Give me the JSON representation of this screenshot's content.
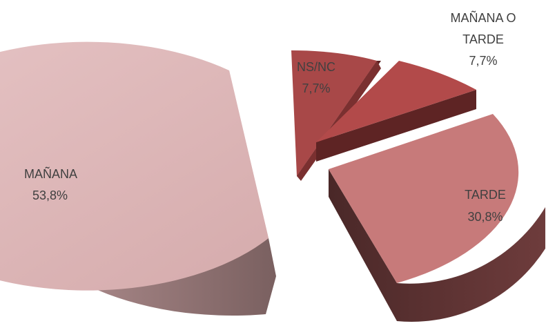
{
  "chart_data": {
    "type": "pie",
    "style": "3d-exploded",
    "legend": "none",
    "title": "",
    "slices": [
      {
        "label_lines": [
          "MAÑANA"
        ],
        "value_label": "53,8%",
        "value": 53.8,
        "top_color": "#DDB5B6",
        "side_color": "#8A6A6B"
      },
      {
        "label_lines": [
          "NS/NC"
        ],
        "value_label": "7,7%",
        "value": 7.7,
        "top_color": "#A84848",
        "side_color": "#5A2020"
      },
      {
        "label_lines": [
          "MAÑANA O",
          "TARDE"
        ],
        "value_label": "7,7%",
        "value": 7.7,
        "top_color": "#B24A4A",
        "side_color": "#5E2424"
      },
      {
        "label_lines": [
          "TARDE"
        ],
        "value_label": "30,8%",
        "value": 30.8,
        "top_color": "#C77A7A",
        "side_color": "#6A3A3A"
      }
    ]
  }
}
